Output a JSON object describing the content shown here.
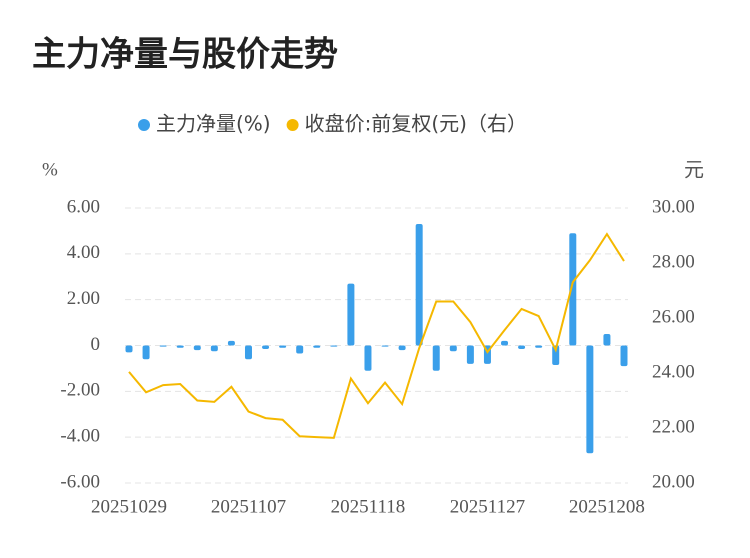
{
  "chart_data": {
    "type": "bar_line",
    "title": "主力净量与股价走势",
    "y_label": "%",
    "y2_label": "元",
    "categories": [
      "20251029",
      null,
      null,
      null,
      null,
      null,
      null,
      "20251107",
      null,
      null,
      null,
      null,
      null,
      null,
      "20251118",
      null,
      null,
      null,
      null,
      null,
      null,
      "20251127",
      null,
      null,
      null,
      null,
      null,
      null,
      "20251208",
      null
    ],
    "series": [
      {
        "name": "主力净量(%)",
        "type": "bar",
        "color": "#3a9fea",
        "values": [
          -0.3,
          -0.6,
          -0.05,
          -0.1,
          -0.2,
          -0.25,
          0.2,
          -0.6,
          -0.15,
          -0.1,
          -0.35,
          -0.1,
          -0.05,
          2.7,
          -1.1,
          -0.05,
          -0.2,
          5.3,
          -1.1,
          -0.25,
          -0.8,
          -0.8,
          0.2,
          -0.15,
          -0.1,
          -0.85,
          4.9,
          -4.7,
          0.5,
          -0.9
        ]
      },
      {
        "name": "收盘价:前复权(元)（右）",
        "type": "line",
        "axis": "y2",
        "color": "#f5b800",
        "values": [
          24.04,
          23.3,
          23.56,
          23.6,
          23.0,
          22.95,
          23.5,
          22.6,
          22.36,
          22.3,
          21.7,
          21.67,
          21.64,
          23.8,
          22.9,
          23.65,
          22.87,
          24.9,
          26.6,
          26.6,
          25.85,
          24.76,
          25.56,
          26.33,
          26.07,
          24.84,
          27.3,
          28.1,
          29.05,
          28.07
        ]
      }
    ],
    "ylim": [
      -6,
      6
    ],
    "yticks": [
      {
        "value": 6,
        "label": "6.00"
      },
      {
        "value": 4,
        "label": "4.00"
      },
      {
        "value": 2,
        "label": "2.00"
      },
      0,
      {
        "value": -2,
        "label": "-2.00"
      },
      {
        "value": -4,
        "label": "-4.00"
      },
      {
        "value": -6,
        "label": "-6.00"
      }
    ],
    "y2lim": [
      20,
      30
    ],
    "y2ticks": [
      {
        "value": 30,
        "label": "30.00"
      },
      {
        "value": 28,
        "label": "28.00"
      },
      {
        "value": 26,
        "label": "26.00"
      },
      {
        "value": 24,
        "label": "24.00"
      },
      {
        "value": 22,
        "label": "22.00"
      },
      {
        "value": 20,
        "label": "20.00"
      }
    ],
    "grid": true
  }
}
